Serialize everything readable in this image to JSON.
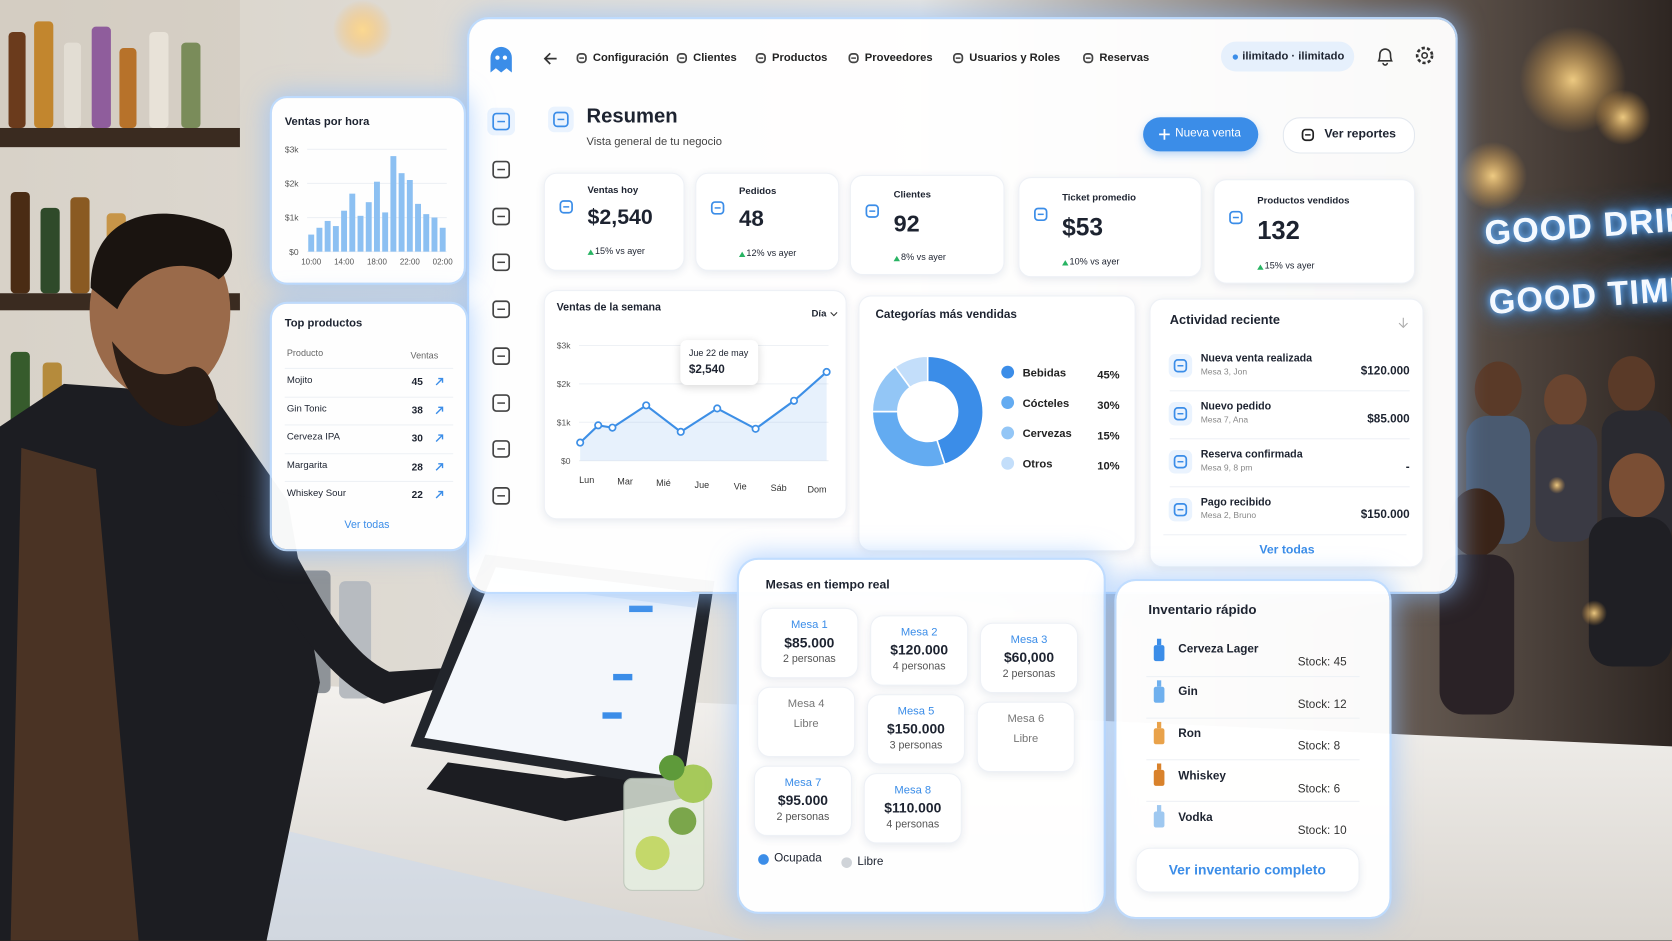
{
  "nav": {
    "items": [
      "Configuración",
      "Clientes",
      "Productos",
      "Proveedores",
      "Usuarios y Roles",
      "Reservas"
    ],
    "plan": "ilimitado · ilimitado"
  },
  "header": {
    "title": "Resumen",
    "subtitle": "Vista general de tu negocio",
    "primary_button": "Nueva venta",
    "secondary_button": "Ver reportes"
  },
  "kpis": [
    {
      "label": "Ventas hoy",
      "value": "$2,540",
      "change": "15% vs ayer"
    },
    {
      "label": "Pedidos",
      "value": "48",
      "change": "12% vs ayer"
    },
    {
      "label": "Clientes",
      "value": "92",
      "change": "8% vs ayer"
    },
    {
      "label": "Ticket promedio",
      "value": "$53",
      "change": "10% vs ayer"
    },
    {
      "label": "Productos vendidos",
      "value": "132",
      "change": "15% vs ayer"
    }
  ],
  "chart_data": [
    {
      "type": "bar",
      "title": "Ventas por hora",
      "categories": [
        "10:00",
        null,
        null,
        null,
        "14:00",
        null,
        null,
        null,
        "18:00",
        null,
        null,
        null,
        "22:00",
        null,
        null,
        null,
        "02:00"
      ],
      "values": [
        500,
        700,
        900,
        750,
        1200,
        1700,
        1050,
        1450,
        2050,
        1150,
        2800,
        2300,
        2100,
        1400,
        1100,
        1000,
        700
      ],
      "color": "#8cc0f2",
      "ylim": [
        0,
        3000
      ],
      "yticks": [
        {
          "value": 0,
          "label": "$0"
        },
        {
          "value": 1000,
          "label": "$1k"
        },
        {
          "value": 2000,
          "label": "$2k"
        },
        {
          "value": 3000,
          "label": "$3k"
        }
      ],
      "grid": true
    },
    {
      "type": "line",
      "title": "Ventas de la semana",
      "filter": "Día",
      "x": [
        -0.17,
        0.3,
        0.67,
        1.55,
        2.45,
        3.4,
        4.4,
        5.4,
        6.25
      ],
      "values": [
        470,
        920,
        860,
        1440,
        750,
        1360,
        830,
        1560,
        2310
      ],
      "xlim": [
        -0.2,
        6.3
      ],
      "xticks": [
        {
          "value": 0,
          "label": "Lun"
        },
        {
          "value": 1,
          "label": "Mar"
        },
        {
          "value": 2,
          "label": "Mié"
        },
        {
          "value": 3,
          "label": "Jue"
        },
        {
          "value": 4,
          "label": "Vie"
        },
        {
          "value": 5,
          "label": "Sáb"
        },
        {
          "value": 6,
          "label": "Dom"
        }
      ],
      "ylim": [
        0,
        3000
      ],
      "yticks": [
        {
          "value": 0,
          "label": "$0"
        },
        {
          "value": 1000,
          "label": "$1k"
        },
        {
          "value": 2000,
          "label": "$2k"
        },
        {
          "value": 3000,
          "label": "$3k"
        }
      ],
      "color": "#3d8fe6",
      "area": true,
      "annotation": {
        "label": "Jue 22 de may",
        "value": "$2,540"
      }
    },
    {
      "type": "pie",
      "title": "Categorías más vendidas",
      "donut": true,
      "categories": [
        "Bebidas",
        "Cócteles",
        "Cervezas",
        "Otros"
      ],
      "values": [
        45,
        30,
        15,
        10
      ],
      "value_labels": [
        "45%",
        "30%",
        "15%",
        "10%"
      ],
      "colors": [
        "#3b8de8",
        "#63abf1",
        "#93c6f6",
        "#c3defa"
      ]
    }
  ],
  "top_products": {
    "title": "Top productos",
    "columns": [
      "Producto",
      "Ventas"
    ],
    "rows": [
      [
        "Mojito",
        45
      ],
      [
        "Gin Tonic",
        38
      ],
      [
        "Cerveza IPA",
        30
      ],
      [
        "Margarita",
        28
      ],
      [
        "Whiskey Sour",
        22
      ]
    ],
    "link": "Ver todas"
  },
  "activity": {
    "title": "Actividad reciente",
    "items": [
      {
        "title": "Nueva venta realizada",
        "detail": "Mesa 3, Jon",
        "amount": "$120.000"
      },
      {
        "title": "Nuevo pedido",
        "detail": "Mesa 7, Ana",
        "amount": "$85.000"
      },
      {
        "title": "Reserva confirmada",
        "detail": "Mesa 9, 8 pm",
        "amount": "-"
      },
      {
        "title": "Pago recibido",
        "detail": "Mesa 2, Bruno",
        "amount": "$150.000"
      }
    ],
    "link": "Ver todas"
  },
  "tables": {
    "title": "Mesas en tiempo real",
    "items": [
      {
        "name": "Mesa 1",
        "amount": "$85.000",
        "people": "2 personas"
      },
      {
        "name": "Mesa 2",
        "amount": "$120.000",
        "people": "4 personas"
      },
      {
        "name": "Mesa 3",
        "amount": "$60,000",
        "people": "2 personas"
      },
      {
        "name": "Mesa 4",
        "state": "Libre"
      },
      {
        "name": "Mesa 5",
        "amount": "$150.000",
        "people": "3 personas"
      },
      {
        "name": "Mesa 6",
        "state": "Libre"
      },
      {
        "name": "Mesa 7",
        "amount": "$95.000",
        "people": "2 personas"
      },
      {
        "name": "Mesa 8",
        "amount": "$110.000",
        "people": "4 personas"
      }
    ],
    "legend": [
      "Ocupada",
      "Libre"
    ]
  },
  "inventory": {
    "title": "Inventario rápido",
    "items": [
      {
        "name": "Cerveza Lager",
        "stock": "Stock: 45",
        "color": "#3b8de8"
      },
      {
        "name": "Gin",
        "stock": "Stock: 12",
        "color": "#6fb0ee"
      },
      {
        "name": "Ron",
        "stock": "Stock: 8",
        "color": "#e9a24a"
      },
      {
        "name": "Whiskey",
        "stock": "Stock: 6",
        "color": "#d9822b"
      },
      {
        "name": "Vodka",
        "stock": "Stock: 10",
        "color": "#9fc8f0"
      }
    ],
    "link": "Ver inventario completo"
  },
  "sign": {
    "lines": [
      "GOOD DRINKS",
      "GOOD TIMES"
    ]
  }
}
